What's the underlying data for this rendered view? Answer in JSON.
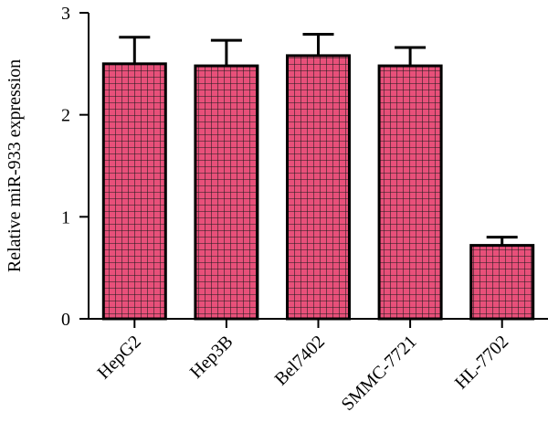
{
  "chart_data": {
    "type": "bar",
    "title": "",
    "xlabel": "",
    "ylabel": "Relative miR-933 expression",
    "ylim": [
      0,
      3
    ],
    "yticks": [
      0,
      1,
      2,
      3
    ],
    "categories": [
      "HepG2",
      "Hep3B",
      "Bel7402",
      "SMMC-7721",
      "HL-7702"
    ],
    "values": [
      2.5,
      2.48,
      2.58,
      2.48,
      0.72
    ],
    "errors": [
      0.26,
      0.25,
      0.21,
      0.18,
      0.08
    ],
    "grid": false,
    "legend": "none",
    "bar_color": "#e8507a",
    "bar_pattern_color": "#1a1a1a",
    "bar_pattern": "grid"
  }
}
